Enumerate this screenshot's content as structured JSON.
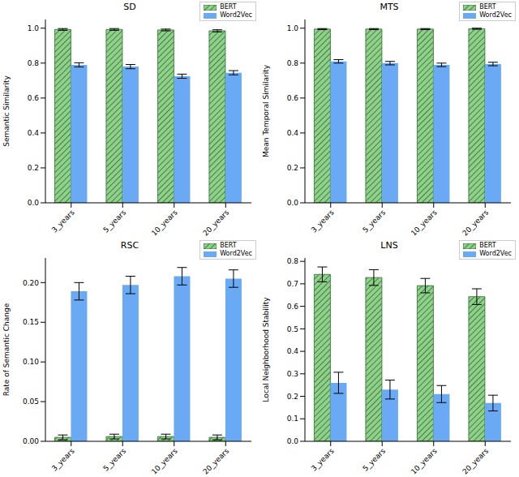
{
  "chart_data": [
    {
      "type": "bar",
      "title": "SD",
      "y_label": "Semantic Similarity",
      "legend": "upper right",
      "categories": [
        "3_years",
        "5_years",
        "10_years",
        "20_years"
      ],
      "ylim": [
        0,
        1.05
      ],
      "yticks": [
        {
          "value": 0,
          "label": "0.0"
        },
        0.2,
        0.4,
        0.6,
        0.8,
        {
          "value": 1,
          "label": "1.0"
        }
      ],
      "series": [
        {
          "name": "BERT",
          "color": "#8fd18a",
          "values": [
            0.993,
            0.993,
            0.99,
            0.985
          ],
          "errors": [
            0.005,
            0.005,
            0.005,
            0.006
          ]
        },
        {
          "name": "Word2Vec",
          "color": "#6aaaf5",
          "values": [
            0.79,
            0.78,
            0.725,
            0.745
          ],
          "errors": [
            0.012,
            0.012,
            0.012,
            0.012
          ]
        }
      ]
    },
    {
      "type": "bar",
      "title": "MTS",
      "y_label": "Mean Temporal Similarity",
      "legend": "upper right",
      "categories": [
        "3_years",
        "5_years",
        "10_years",
        "20_years"
      ],
      "ylim": [
        0,
        1.05
      ],
      "yticks": [
        {
          "value": 0,
          "label": "0.0"
        },
        0.2,
        0.4,
        0.6,
        0.8,
        {
          "value": 1,
          "label": "1.0"
        }
      ],
      "series": [
        {
          "name": "BERT",
          "color": "#8fd18a",
          "values": [
            0.995,
            0.995,
            0.995,
            0.997
          ],
          "errors": [
            0.003,
            0.003,
            0.003,
            0.003
          ]
        },
        {
          "name": "Word2Vec",
          "color": "#6aaaf5",
          "values": [
            0.81,
            0.8,
            0.79,
            0.795
          ],
          "errors": [
            0.01,
            0.01,
            0.01,
            0.01
          ]
        }
      ]
    },
    {
      "type": "bar",
      "title": "RSC",
      "y_label": "Rate of Semantic Change",
      "legend": "upper right",
      "categories": [
        "3_years",
        "5_years",
        "10_years",
        "20_years"
      ],
      "ylim": [
        0,
        0.231
      ],
      "yticks": [
        {
          "value": 0,
          "label": "0.00"
        },
        0.05,
        {
          "value": 0.1,
          "label": "0.10"
        },
        0.15,
        {
          "value": 0.2,
          "label": "0.20"
        }
      ],
      "series": [
        {
          "name": "BERT",
          "color": "#8fd18a",
          "values": [
            0.005,
            0.006,
            0.006,
            0.005
          ],
          "errors": [
            0.003,
            0.003,
            0.003,
            0.003
          ]
        },
        {
          "name": "Word2Vec",
          "color": "#6aaaf5",
          "values": [
            0.189,
            0.197,
            0.208,
            0.205
          ],
          "errors": [
            0.011,
            0.011,
            0.011,
            0.011
          ]
        }
      ]
    },
    {
      "type": "bar",
      "title": "LNS",
      "y_label": "Local Neighborhood Stability",
      "legend": "upper right",
      "categories": [
        "3_years",
        "5_years",
        "10_years",
        "20_years"
      ],
      "ylim": [
        0,
        0.815
      ],
      "yticks": [
        {
          "value": 0,
          "label": "0.0"
        },
        0.1,
        0.2,
        0.3,
        0.4,
        0.5,
        0.6,
        0.7,
        0.8
      ],
      "series": [
        {
          "name": "BERT",
          "color": "#8fd18a",
          "values": [
            0.742,
            0.728,
            0.692,
            0.643
          ],
          "errors": [
            0.033,
            0.035,
            0.032,
            0.035
          ]
        },
        {
          "name": "Word2Vec",
          "color": "#6aaaf5",
          "values": [
            0.26,
            0.23,
            0.21,
            0.17
          ],
          "errors": [
            0.047,
            0.042,
            0.038,
            0.035
          ]
        }
      ]
    }
  ]
}
